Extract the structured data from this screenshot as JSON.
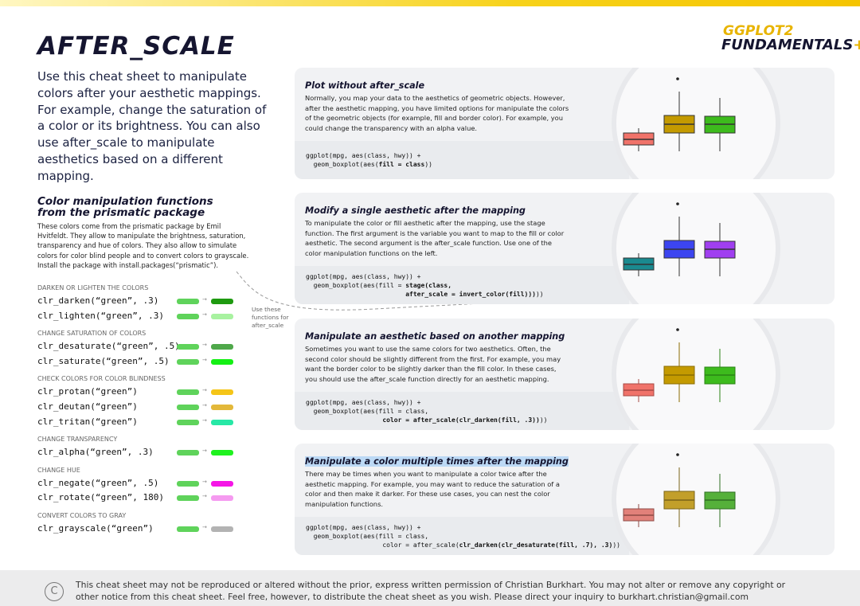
{
  "header": {
    "title": "AFTER_SCALE",
    "logo_top": "GGPLOT2",
    "logo_bottom": "FUNDAMENTALS",
    "logo_plus": "+",
    "intro": "Use this cheat sheet to manipulate colors after your aesthetic mappings. For example, change the saturation of a color or its brightness. You can also use after_scale to manipulate aesthetics based on a different mapping."
  },
  "functions": {
    "title_line1": "Color manipulation functions",
    "title_line2": "from the prismatic package",
    "description": "These colors come from the prismatic package by Emil Hvitfeldt. They allow to manipulate the brightness, saturation, transparency and hue of colors. They also allow to simulate colors for color blind people and to convert colors to grayscale. Install the package with install.packages(“prismatic”).",
    "annotation": "Use these functions for after_scale",
    "groups": [
      {
        "heading": "DARKEN OR LIGHTEN THE COLORS",
        "items": [
          {
            "code": "clr_darken(“green”, .3)",
            "colors": [
              "#5fd35b",
              "#1e9a10"
            ]
          },
          {
            "code": "clr_lighten(“green”, .3)",
            "colors": [
              "#5fd35b",
              "#a8f2a0"
            ]
          }
        ]
      },
      {
        "heading": "CHANGE SATURATION OF COLORS",
        "items": [
          {
            "code": "clr_desaturate(“green”, .5)",
            "colors": [
              "#5fd35b",
              "#4fa84a"
            ]
          },
          {
            "code": "clr_saturate(“green”, .5)",
            "colors": [
              "#5fd35b",
              "#14f014"
            ]
          }
        ]
      },
      {
        "heading": "CHECK COLORS FOR COLOR BLINDNESS",
        "items": [
          {
            "code": "clr_protan(“green”)",
            "colors": [
              "#5fd35b",
              "#f5c518"
            ]
          },
          {
            "code": "clr_deutan(“green”)",
            "colors": [
              "#5fd35b",
              "#e3b83a"
            ]
          },
          {
            "code": "clr_tritan(“green”)",
            "colors": [
              "#5fd35b",
              "#27e8a6"
            ]
          }
        ]
      },
      {
        "heading": "CHANGE TRANSPARENCY",
        "items": [
          {
            "code": "clr_alpha(“green”, .3)",
            "colors": [
              "#5fd35b",
              "#1ff21f"
            ]
          }
        ]
      },
      {
        "heading": "CHANGE HUE",
        "items": [
          {
            "code": "clr_negate(“green”, .5)",
            "colors": [
              "#5fd35b",
              "#f516e6"
            ]
          },
          {
            "code": "clr_rotate(“green”, 180)",
            "colors": [
              "#5fd35b",
              "#f59af0"
            ]
          }
        ]
      },
      {
        "heading": "CONVERT COLORS TO GRAY",
        "items": [
          {
            "code": "clr_grayscale(“green”)",
            "colors": [
              "#5fd35b",
              "#b3b3b3"
            ]
          }
        ]
      }
    ]
  },
  "sections": [
    {
      "title": "Plot without after_scale",
      "text": "Normally, you map your data to the aesthetics of geometric objects. However, after the aesthetic mapping, you have limited options for manipulate the colors of the geometric objects (for example, fill and border color). For example, you could change the transparency with an alpha value.",
      "code": [
        [
          {
            "text": "ggplot(mpg, aes(class, hwy)) +",
            "bold": false
          }
        ],
        [
          {
            "text": "  geom_boxplot(aes(",
            "bold": false
          },
          {
            "text": "fill = class",
            "bold": true
          },
          {
            "text": "))",
            "bold": false
          }
        ]
      ]
    },
    {
      "title": "Modify a single aesthetic after the mapping",
      "text": "To manipulate the color or fill aesthetic after the mapping, use the stage function. The first argument is the variable you want to map to the fill or color aesthetic. The second argument is the after_scale function. Use one of the color manipulation functions on the left.",
      "code": [
        [
          {
            "text": "ggplot(mpg, aes(class, hwy)) +",
            "bold": false
          }
        ],
        [
          {
            "text": "  geom_boxplot(aes(fill = ",
            "bold": false
          },
          {
            "text": "stage(class,",
            "bold": true
          }
        ],
        [
          {
            "text": "                          after_scale = invert_color(fill)))",
            "bold": true
          },
          {
            "text": "))",
            "bold": false
          }
        ]
      ]
    },
    {
      "title": "Manipulate an aesthetic based on another mapping",
      "text": "Sometimes you want to use the same colors for two aesthetics. Often, the second color should be slightly different from the first. For example, you may want the border color to be slightly darker than the fill color. In these cases, you should use the after_scale function directly for an aesthetic mapping.",
      "code": [
        [
          {
            "text": "ggplot(mpg, aes(class, hwy)) +",
            "bold": false
          }
        ],
        [
          {
            "text": "  geom_boxplot(aes(fill = class,",
            "bold": false
          }
        ],
        [
          {
            "text": "                    color = after_scale(clr_darken(fill, .3))",
            "bold": true
          },
          {
            "text": "))",
            "bold": false
          }
        ]
      ]
    },
    {
      "title": "Manipulate a color multiple times after the mapping",
      "highlight": true,
      "text": "There may be times when you want to manipulate a color twice after the aesthetic mapping. For example, you may want to reduce the saturation of a color and then make it darker. For these use cases, you can nest the color manipulation functions.",
      "code": [
        [
          {
            "text": "ggplot(mpg, aes(class, hwy)) +",
            "bold": false
          }
        ],
        [
          {
            "text": "  geom_boxplot(aes(fill = class,",
            "bold": false
          }
        ],
        [
          {
            "text": "                    color = after_scale(",
            "bold": false
          },
          {
            "text": "clr_darken(clr_desaturate(fill, .7), .3)",
            "bold": true
          },
          {
            "text": "))",
            "bold": false
          }
        ]
      ]
    }
  ],
  "footer": {
    "symbol": "C",
    "notice": "This cheat sheet may not be reproduced or altered without the prior, express written permission of Christian Burkhart. You may not alter or remove any copyright or other notice from this cheat sheet. Feel free, however, to distribute the cheat sheet as you wish. Please direct your inquiry to burkhart.christian@gmail.com"
  }
}
